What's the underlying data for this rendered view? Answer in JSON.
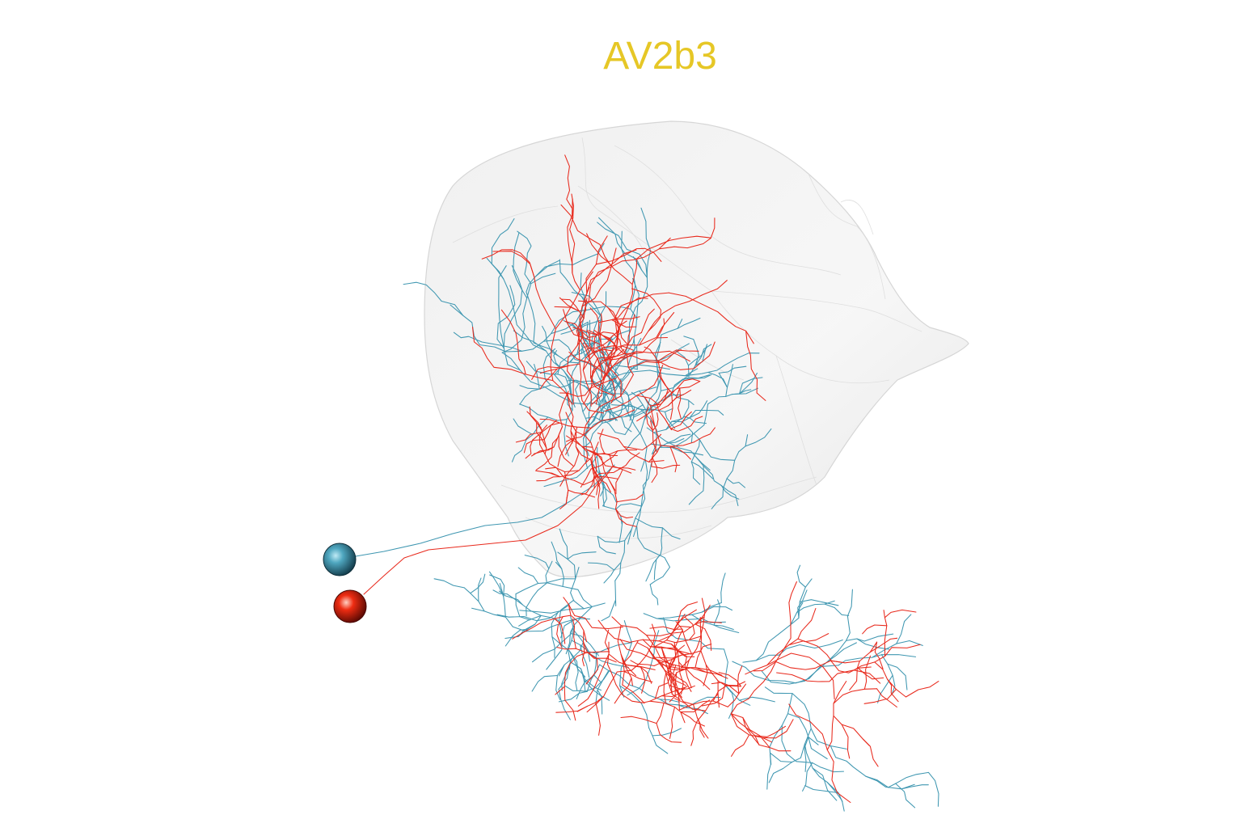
{
  "title": "AV2b3",
  "colors": {
    "title": "#e6c726",
    "neuron_a": "#3f97b1",
    "neuron_b": "#e8291c",
    "mesh_fill": "#ebebeb",
    "mesh_edge": "#d2d2d2"
  },
  "neurons": [
    {
      "name": "neuron-teal",
      "color_key": "neuron_a",
      "soma_icon": "teal-sphere-icon"
    },
    {
      "name": "neuron-red",
      "color_key": "neuron_b",
      "soma_icon": "red-sphere-icon"
    }
  ]
}
